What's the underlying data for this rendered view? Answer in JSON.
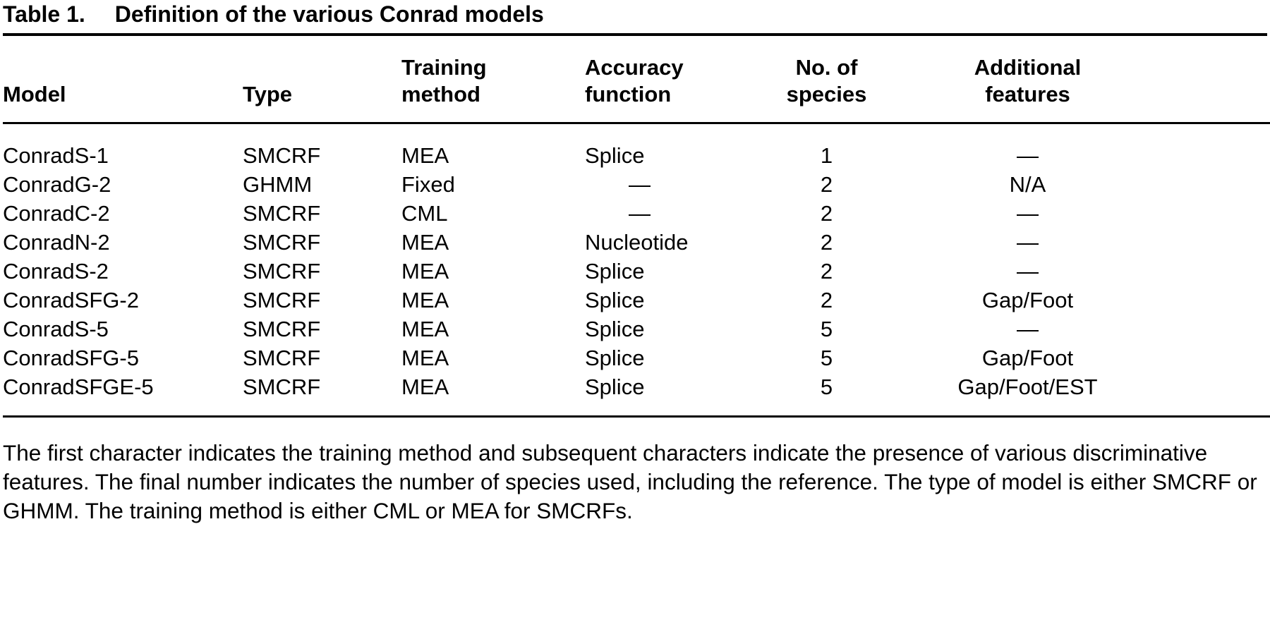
{
  "table": {
    "label": "Table 1.",
    "title": "Definition of the various Conrad models",
    "columns": [
      {
        "label": "Model"
      },
      {
        "label": "Type"
      },
      {
        "label": "Training method"
      },
      {
        "label": "Accuracy function"
      },
      {
        "label": "No. of species"
      },
      {
        "label": "Additional features"
      }
    ],
    "rows": [
      [
        "ConradS-1",
        "SMCRF",
        "MEA",
        "Splice",
        "1",
        "—"
      ],
      [
        "ConradG-2",
        "GHMM",
        "Fixed",
        "—",
        "2",
        "N/A"
      ],
      [
        "ConradC-2",
        "SMCRF",
        "CML",
        "—",
        "2",
        "—"
      ],
      [
        "ConradN-2",
        "SMCRF",
        "MEA",
        "Nucleotide",
        "2",
        "—"
      ],
      [
        "ConradS-2",
        "SMCRF",
        "MEA",
        "Splice",
        "2",
        "—"
      ],
      [
        "ConradSFG-2",
        "SMCRF",
        "MEA",
        "Splice",
        "2",
        "Gap/Foot"
      ],
      [
        "ConradS-5",
        "SMCRF",
        "MEA",
        "Splice",
        "5",
        "—"
      ],
      [
        "ConradSFG-5",
        "SMCRF",
        "MEA",
        "Splice",
        "5",
        "Gap/Foot"
      ],
      [
        "ConradSFGE-5",
        "SMCRF",
        "MEA",
        "Splice",
        "5",
        "Gap/Foot/EST"
      ]
    ],
    "footnote": "The first character indicates the training method and subsequent characters indicate the presence of various discriminative features. The final number indicates the number of species used, including the reference. The type of model is either SMCRF or GHMM. The training method is either CML or MEA for SMCRFs."
  }
}
